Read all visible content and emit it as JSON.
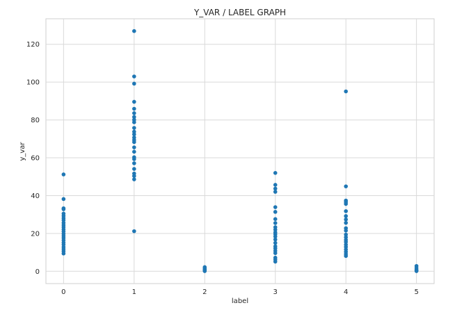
{
  "chart_data": {
    "type": "scatter",
    "title": "Y_VAR / LABEL GRAPH",
    "xlabel": "label",
    "ylabel": "y_var",
    "xlim": [
      -0.25,
      5.25
    ],
    "ylim": [
      -6.5,
      133.5
    ],
    "xticks": [
      0,
      1,
      2,
      3,
      4,
      5
    ],
    "yticks": [
      0,
      20,
      40,
      60,
      80,
      100,
      120
    ],
    "grid": true,
    "legend": "none",
    "marker_color": "#1f77b4",
    "series": [
      {
        "points": [
          [
            0,
            51.2
          ],
          [
            0,
            38.2
          ],
          [
            0,
            33.3
          ],
          [
            0,
            32.8
          ],
          [
            0,
            30.5
          ],
          [
            0,
            29.3
          ],
          [
            0,
            28.1
          ],
          [
            0,
            27.0
          ],
          [
            0,
            25.6
          ],
          [
            0,
            24.4
          ],
          [
            0,
            23.3
          ],
          [
            0,
            22.1
          ],
          [
            0,
            21.0
          ],
          [
            0,
            19.8
          ],
          [
            0,
            18.7
          ],
          [
            0,
            17.6
          ],
          [
            0,
            16.4
          ],
          [
            0,
            15.2
          ],
          [
            0,
            14.1
          ],
          [
            0,
            12.8
          ],
          [
            0,
            11.7
          ],
          [
            0,
            10.6
          ],
          [
            0,
            9.4
          ],
          [
            1,
            127.0
          ],
          [
            1,
            103.0
          ],
          [
            1,
            99.2
          ],
          [
            1,
            89.6
          ],
          [
            1,
            85.9
          ],
          [
            1,
            83.6
          ],
          [
            1,
            81.6
          ],
          [
            1,
            80.1
          ],
          [
            1,
            78.8
          ],
          [
            1,
            75.8
          ],
          [
            1,
            73.8
          ],
          [
            1,
            72.4
          ],
          [
            1,
            70.7
          ],
          [
            1,
            69.4
          ],
          [
            1,
            68.3
          ],
          [
            1,
            65.5
          ],
          [
            1,
            63.2
          ],
          [
            1,
            60.3
          ],
          [
            1,
            59.3
          ],
          [
            1,
            57.1
          ],
          [
            1,
            54.1
          ],
          [
            1,
            51.7
          ],
          [
            1,
            50.4
          ],
          [
            1,
            48.6
          ],
          [
            1,
            21.2
          ],
          [
            2,
            2.2
          ],
          [
            2,
            1.6
          ],
          [
            2,
            1.0
          ],
          [
            2,
            0.6
          ],
          [
            2,
            0.3
          ],
          [
            2,
            0.1
          ],
          [
            3,
            52.0
          ],
          [
            3,
            45.7
          ],
          [
            3,
            43.7
          ],
          [
            3,
            42.0
          ],
          [
            3,
            33.9
          ],
          [
            3,
            31.4
          ],
          [
            3,
            27.6
          ],
          [
            3,
            25.5
          ],
          [
            3,
            23.3
          ],
          [
            3,
            22.0
          ],
          [
            3,
            20.6
          ],
          [
            3,
            19.6
          ],
          [
            3,
            18.4
          ],
          [
            3,
            16.8
          ],
          [
            3,
            15.0
          ],
          [
            3,
            13.2
          ],
          [
            3,
            12.1
          ],
          [
            3,
            10.8
          ],
          [
            3,
            9.6
          ],
          [
            3,
            7.2
          ],
          [
            3,
            6.2
          ],
          [
            3,
            5.1
          ],
          [
            4,
            95.1
          ],
          [
            4,
            44.9
          ],
          [
            4,
            37.4
          ],
          [
            4,
            36.6
          ],
          [
            4,
            35.6
          ],
          [
            4,
            31.8
          ],
          [
            4,
            29.2
          ],
          [
            4,
            27.4
          ],
          [
            4,
            25.6
          ],
          [
            4,
            22.8
          ],
          [
            4,
            21.5
          ],
          [
            4,
            19.4
          ],
          [
            4,
            18.0
          ],
          [
            4,
            16.6
          ],
          [
            4,
            15.5
          ],
          [
            4,
            14.1
          ],
          [
            4,
            12.9
          ],
          [
            4,
            11.5
          ],
          [
            4,
            10.3
          ],
          [
            4,
            9.1
          ],
          [
            4,
            8.1
          ],
          [
            5,
            2.8
          ],
          [
            5,
            1.7
          ],
          [
            5,
            0.8
          ],
          [
            5,
            0.3
          ],
          [
            5,
            0.1
          ]
        ]
      }
    ]
  }
}
